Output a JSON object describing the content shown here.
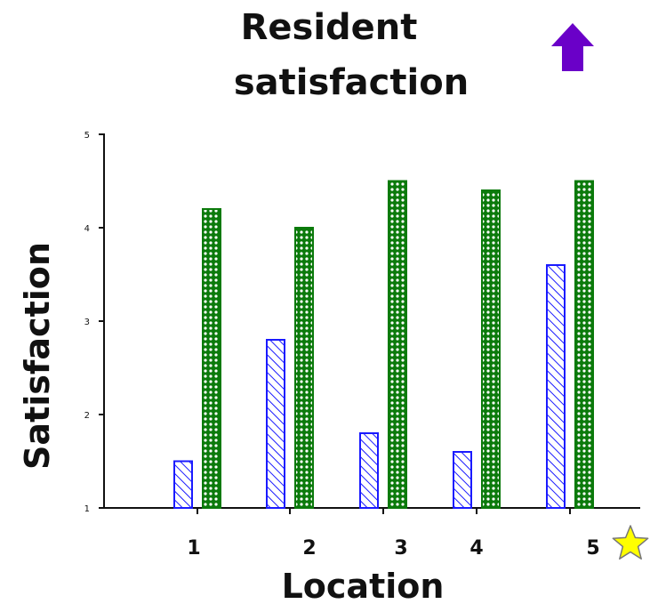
{
  "title_lines": [
    "Resident",
    "satisfaction"
  ],
  "colors": {
    "series_a": "#1a1aff",
    "series_b": "#0b7a0b",
    "arrow": "#6a00c8",
    "star": "#ffff00",
    "star_stroke": "#777777",
    "axis": "#111111"
  },
  "icons": {
    "arrow": "up-arrow-icon",
    "star": "star-icon"
  },
  "chart_data": {
    "type": "bar",
    "title": "Resident satisfaction",
    "xlabel": "Location",
    "ylabel": "Satisfaction",
    "ylim": [
      1,
      5
    ],
    "yticks": [
      "1",
      "2",
      "3",
      "4",
      "5"
    ],
    "categories": [
      "1",
      "2",
      "3",
      "4",
      "5"
    ],
    "series": [
      {
        "values": [
          1.5,
          2.8,
          1.8,
          1.6,
          3.6
        ]
      },
      {
        "values": [
          4.2,
          4.0,
          4.5,
          4.4,
          4.5
        ]
      }
    ],
    "grid": false,
    "legend": "none"
  }
}
